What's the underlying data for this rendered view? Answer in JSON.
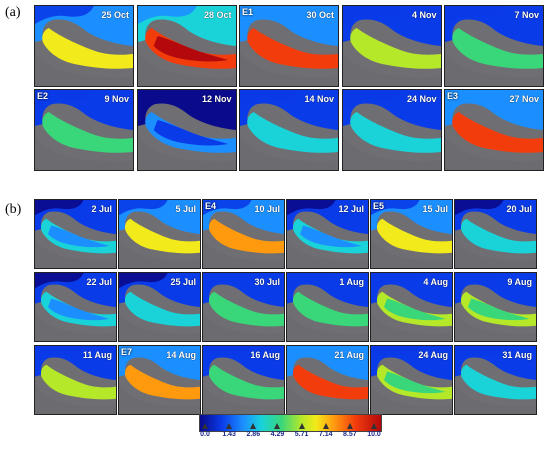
{
  "panels": [
    {
      "label": "(a)",
      "tiles": [
        {
          "date": "25 Oct",
          "event": "",
          "intensity": 0.55
        },
        {
          "date": "28 Oct",
          "event": "",
          "intensity": 0.9
        },
        {
          "date": "30 Oct",
          "event": "E1",
          "intensity": 0.8
        },
        {
          "date": "4 Nov",
          "event": "",
          "intensity": 0.45
        },
        {
          "date": "7 Nov",
          "event": "",
          "intensity": 0.35
        },
        {
          "date": "9 Nov",
          "event": "E2",
          "intensity": 0.3
        },
        {
          "date": "12 Nov",
          "event": "",
          "intensity": 0.05
        },
        {
          "date": "14 Nov",
          "event": "",
          "intensity": 0.25
        },
        {
          "date": "24 Nov",
          "event": "",
          "intensity": 0.25
        },
        {
          "date": "27 Nov",
          "event": "E3",
          "intensity": 0.85
        }
      ]
    },
    {
      "label": "(b)",
      "tiles": [
        {
          "date": "2 Jul",
          "event": "",
          "intensity": 0.15
        },
        {
          "date": "5 Jul",
          "event": "",
          "intensity": 0.6
        },
        {
          "date": "10 Jul",
          "event": "E4",
          "intensity": 0.7
        },
        {
          "date": "12 Jul",
          "event": "",
          "intensity": 0.15
        },
        {
          "date": "15 Jul",
          "event": "E5",
          "intensity": 0.55
        },
        {
          "date": "20 Jul",
          "event": "",
          "intensity": 0.2
        },
        {
          "date": "22 Jul",
          "event": "",
          "intensity": 0.15
        },
        {
          "date": "25 Jul",
          "event": "",
          "intensity": 0.2
        },
        {
          "date": "30 Jul",
          "event": "",
          "intensity": 0.3
        },
        {
          "date": "1 Aug",
          "event": "",
          "intensity": 0.3
        },
        {
          "date": "4 Aug",
          "event": "",
          "intensity": 0.4
        },
        {
          "date": "9 Aug",
          "event": "",
          "intensity": 0.4
        },
        {
          "date": "11 Aug",
          "event": "",
          "intensity": 0.45
        },
        {
          "date": "14 Aug",
          "event": "E7",
          "intensity": 0.75
        },
        {
          "date": "16 Aug",
          "event": "",
          "intensity": 0.3
        },
        {
          "date": "21 Aug",
          "event": "",
          "intensity": 0.85
        },
        {
          "date": "24 Aug",
          "event": "",
          "intensity": 0.4
        },
        {
          "date": "31 Aug",
          "event": "",
          "intensity": 0.25
        }
      ]
    }
  ],
  "colorbar": {
    "ticks": [
      "0.0",
      "1.43",
      "2.86",
      "4.29",
      "5.71",
      "7.14",
      "8.57",
      "10.0"
    ],
    "colors": [
      "#0a0a8c",
      "#0a3be8",
      "#1b8fff",
      "#19d3d9",
      "#3ad67a",
      "#b6e82a",
      "#f2ea1a",
      "#ff9a0f",
      "#f23c0c",
      "#b3090c"
    ]
  }
}
